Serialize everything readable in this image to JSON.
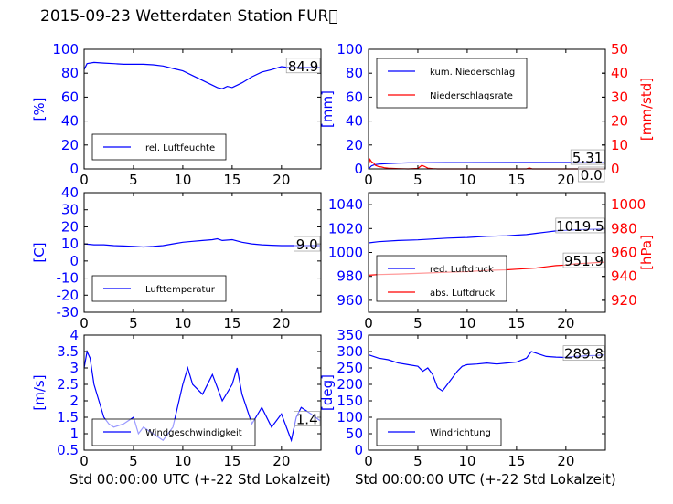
{
  "title": "2015-09-23 Wetterdaten Station FUR\u0000",
  "xlabel_left": "Std 00:00:00 UTC (+-22 Std Lokalzeit)",
  "xlabel_right": "Std 00:00:00 UTC (+-22 Std Lokalzeit)",
  "colors": {
    "blue": "#0000ff",
    "red": "#ff0000"
  },
  "chart_data": [
    {
      "type": "line",
      "ylabel": "[%]",
      "xlim": [
        0,
        24
      ],
      "ylim": [
        0,
        100
      ],
      "xticks": [
        0,
        5,
        10,
        15,
        20
      ],
      "yticks": [
        0,
        20,
        40,
        60,
        80,
        100
      ],
      "annotation": "84.9",
      "legend_position": "lower-left",
      "series": [
        {
          "name": "rel. Luftfeuchte",
          "color": "#0000ff",
          "x": [
            0,
            0.3,
            1,
            2,
            3,
            4,
            5,
            6,
            7,
            8,
            9,
            10,
            11,
            12,
            12.5,
            13,
            13.5,
            14,
            14.5,
            15,
            15.5,
            16,
            17,
            18,
            19,
            20,
            21,
            22,
            23,
            23.9
          ],
          "y": [
            83,
            88,
            89,
            88.5,
            88,
            87.5,
            87.5,
            87.5,
            87,
            86,
            84,
            82,
            78,
            74,
            72,
            70,
            68,
            67,
            69,
            68,
            70,
            72,
            77,
            81,
            83,
            85.5,
            84.5,
            85,
            84.9,
            84.9
          ]
        }
      ]
    },
    {
      "type": "line",
      "ylabel": "[mm]",
      "y2label": "[mm/std]",
      "xlim": [
        0,
        24
      ],
      "ylim": [
        0,
        100
      ],
      "y2lim": [
        0,
        50
      ],
      "xticks": [
        0,
        5,
        10,
        15,
        20
      ],
      "yticks": [
        0,
        20,
        40,
        60,
        80,
        100
      ],
      "y2ticks": [
        0,
        10,
        20,
        30,
        40,
        50
      ],
      "annotations": [
        "5.31",
        "0.0"
      ],
      "legend_position": "upper-left",
      "series": [
        {
          "name": "kum. Niederschlag",
          "color": "#0000ff",
          "axis": "left",
          "x": [
            0,
            0.3,
            0.6,
            1,
            2,
            3,
            4,
            5,
            6,
            8,
            10,
            15,
            20,
            23.9
          ],
          "y": [
            0,
            2.5,
            3.5,
            4,
            4.5,
            4.8,
            5,
            5.1,
            5.2,
            5.25,
            5.3,
            5.31,
            5.31,
            5.31
          ]
        },
        {
          "name": "Niederschlagsrate",
          "color": "#ff0000",
          "axis": "right",
          "x": [
            0,
            0.15,
            0.3,
            0.5,
            0.7,
            1,
            1.3,
            1.6,
            2,
            2.5,
            3,
            4,
            5,
            5.4,
            5.7,
            6,
            6.5,
            7,
            9,
            12,
            16,
            16.3,
            16.6,
            20,
            23.9
          ],
          "y": [
            1.5,
            4,
            3,
            2.5,
            1.5,
            1,
            0.8,
            0.5,
            0.3,
            0.2,
            0.1,
            0,
            0.2,
            1.5,
            1,
            0.3,
            0.1,
            0,
            0,
            0,
            0,
            0.4,
            0,
            0,
            0
          ]
        }
      ]
    },
    {
      "type": "line",
      "ylabel": "[C]",
      "xlim": [
        0,
        24
      ],
      "ylim": [
        -30,
        40
      ],
      "xticks": [
        0,
        5,
        10,
        15,
        20
      ],
      "yticks": [
        -30,
        -20,
        -10,
        0,
        10,
        20,
        30,
        40
      ],
      "annotation": "9.0",
      "legend_position": "lower-left",
      "series": [
        {
          "name": "Lufttemperatur",
          "color": "#0000ff",
          "x": [
            0,
            1,
            2,
            3,
            4,
            5,
            6,
            7,
            8,
            9,
            10,
            11,
            12,
            13,
            13.5,
            14,
            15,
            16,
            17,
            18,
            19,
            20,
            21,
            22,
            23,
            23.9
          ],
          "y": [
            10,
            9.5,
            9.5,
            9,
            8.8,
            8.5,
            8.2,
            8.5,
            9,
            10,
            11,
            11.5,
            12,
            12.5,
            13,
            12,
            12.5,
            11,
            10,
            9.5,
            9.2,
            9,
            9,
            9,
            9,
            9
          ]
        }
      ]
    },
    {
      "type": "line",
      "ylabel": "",
      "y2label": "[hPa]",
      "xlim": [
        0,
        24
      ],
      "ylim": [
        950,
        1050
      ],
      "y2lim": [
        910,
        1010
      ],
      "xticks": [
        0,
        5,
        10,
        15,
        20
      ],
      "yticks": [
        960,
        980,
        1000,
        1020,
        1040
      ],
      "y2ticks": [
        920,
        940,
        960,
        980,
        1000
      ],
      "annotations": [
        "1019.5",
        "951.9"
      ],
      "legend_position": "lower-left",
      "series": [
        {
          "name": "red. Luftdruck",
          "color": "#0000ff",
          "axis": "left",
          "x": [
            0,
            1,
            3,
            5,
            8,
            10,
            12,
            14,
            15,
            16,
            17,
            18,
            19,
            20,
            21,
            22,
            23,
            23.9
          ],
          "y": [
            1008,
            1009,
            1010,
            1010.5,
            1012,
            1012.5,
            1013.5,
            1014,
            1014.5,
            1015,
            1016,
            1017,
            1018,
            1018.5,
            1019,
            1019.2,
            1019.5,
            1019.5
          ]
        },
        {
          "name": "abs. Luftdruck",
          "color": "#ff0000",
          "axis": "right",
          "x": [
            0,
            1,
            3,
            5,
            8,
            10,
            12,
            14,
            15,
            16,
            17,
            18,
            19,
            20,
            21,
            22,
            23,
            23.9
          ],
          "y": [
            941,
            941.5,
            942,
            942.5,
            943.5,
            944,
            945,
            945.5,
            946,
            946.5,
            947,
            948,
            949,
            949.5,
            950.5,
            951,
            951.5,
            951.9
          ]
        }
      ]
    },
    {
      "type": "line",
      "ylabel": "[m/s]",
      "xlim": [
        0,
        24
      ],
      "ylim": [
        0.5,
        4.0
      ],
      "xticks": [
        0,
        5,
        10,
        15,
        20
      ],
      "yticks": [
        0.5,
        1.0,
        1.5,
        2.0,
        2.5,
        3.0,
        3.5,
        4.0
      ],
      "annotation": "1.4",
      "legend_position": "lower-left",
      "series": [
        {
          "name": "Windgeschwindigkeit",
          "color": "#0000ff",
          "x": [
            0,
            0.3,
            0.6,
            1,
            1.5,
            2,
            2.5,
            3,
            4,
            5,
            5.5,
            6,
            7,
            8,
            9,
            10,
            10.5,
            11,
            12,
            13,
            14,
            15,
            15.5,
            16,
            17,
            18,
            19,
            20,
            21,
            21.5,
            22,
            23,
            23.9
          ],
          "y": [
            3.0,
            3.5,
            3.3,
            2.5,
            2.0,
            1.5,
            1.3,
            1.2,
            1.3,
            1.5,
            1.0,
            1.2,
            1.0,
            0.8,
            1.2,
            2.5,
            3.0,
            2.5,
            2.2,
            2.8,
            2.0,
            2.5,
            3.0,
            2.2,
            1.3,
            1.8,
            1.2,
            1.6,
            0.8,
            1.5,
            1.8,
            1.6,
            1.4
          ]
        }
      ]
    },
    {
      "type": "line",
      "ylabel": "[deg]",
      "xlim": [
        0,
        24
      ],
      "ylim": [
        0,
        350
      ],
      "xticks": [
        0,
        5,
        10,
        15,
        20
      ],
      "yticks": [
        0,
        50,
        100,
        150,
        200,
        250,
        300,
        350
      ],
      "annotation": "289.8",
      "legend_position": "lower-left",
      "series": [
        {
          "name": "Windrichtung",
          "color": "#0000ff",
          "x": [
            0,
            1,
            2,
            3,
            4,
            5,
            5.5,
            6,
            6.5,
            7,
            7.5,
            8,
            8.5,
            9,
            9.5,
            10,
            11,
            12,
            13,
            14,
            15,
            16,
            16.5,
            17,
            18,
            19,
            20,
            21,
            22,
            23,
            23.9
          ],
          "y": [
            290,
            280,
            275,
            265,
            260,
            255,
            240,
            250,
            230,
            190,
            180,
            200,
            220,
            240,
            255,
            260,
            262,
            265,
            262,
            265,
            268,
            280,
            300,
            295,
            285,
            283,
            282,
            285,
            287,
            288,
            289.8
          ]
        }
      ]
    }
  ]
}
